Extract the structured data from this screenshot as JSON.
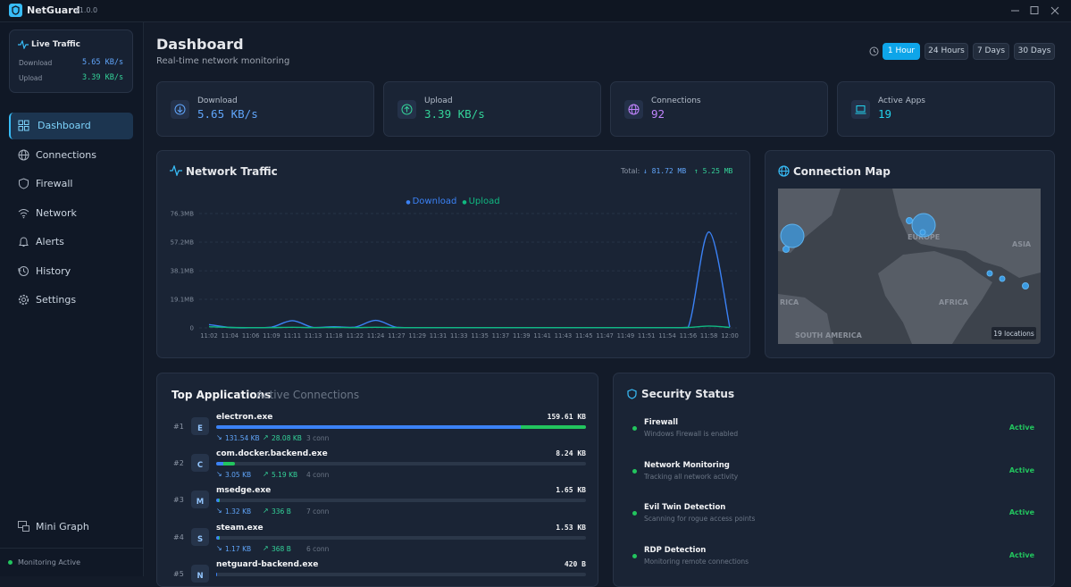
{
  "app": {
    "name": "NetGuard",
    "version": "v1.0.0"
  },
  "live_traffic": {
    "title": "Live Traffic",
    "rows": [
      {
        "label": "Download",
        "value": "5.65 KB/s"
      },
      {
        "label": "Upload",
        "value": "3.39 KB/s"
      }
    ]
  },
  "nav": {
    "items": [
      "Dashboard",
      "Connections",
      "Firewall",
      "Network",
      "Alerts",
      "History",
      "Settings"
    ],
    "active": 0
  },
  "mini_graph": "Mini Graph",
  "status": "Monitoring Active",
  "header": {
    "title": "Dashboard",
    "subtitle": "Real-time network monitoring"
  },
  "time_ranges": {
    "items": [
      "1 Hour",
      "24 Hours",
      "7 Days",
      "30 Days"
    ],
    "active": 0
  },
  "stats": [
    {
      "label": "Download",
      "value": "5.65 KB/s",
      "color": "#60a5fa"
    },
    {
      "label": "Upload",
      "value": "3.39 KB/s",
      "color": "#34d399"
    },
    {
      "label": "Connections",
      "value": "92",
      "color": "#c084fc"
    },
    {
      "label": "Active Apps",
      "value": "19",
      "color": "#22d3ee"
    }
  ],
  "traffic": {
    "title": "Network Traffic",
    "total_label": "Total:",
    "total_down": "↓ 81.72 MB",
    "total_up": "↑ 5.25 MB"
  },
  "chart_data": {
    "type": "line",
    "categories": [
      "11:02",
      "11:04",
      "11:06",
      "11:09",
      "11:11",
      "11:13",
      "11:18",
      "11:22",
      "11:24",
      "11:27",
      "11:29",
      "11:31",
      "11:33",
      "11:35",
      "11:37",
      "11:39",
      "11:41",
      "11:43",
      "11:45",
      "11:47",
      "11:49",
      "11:51",
      "11:54",
      "11:56",
      "11:58",
      "12:00"
    ],
    "series": [
      {
        "name": "Download",
        "color": "#3b82f6",
        "values": [
          2.2,
          0.3,
          0.1,
          0.5,
          4.8,
          0.3,
          0.8,
          0.5,
          5,
          0.4,
          0.2,
          0.2,
          0.2,
          0.2,
          0.2,
          0.2,
          0.2,
          0.2,
          0.2,
          0.2,
          0.2,
          0.2,
          0.2,
          0.3,
          64,
          0.5
        ]
      },
      {
        "name": "Upload",
        "color": "#10b981",
        "values": [
          0.8,
          0.3,
          0.2,
          0.2,
          0.4,
          0.2,
          0.3,
          0.2,
          0.4,
          0.2,
          0.2,
          0.2,
          0.2,
          0.2,
          0.2,
          0.2,
          0.2,
          0.2,
          0.2,
          0.2,
          0.2,
          0.2,
          0.2,
          0.3,
          1.2,
          0.3
        ]
      }
    ],
    "ylim": [
      0,
      76.3
    ],
    "yticks": [
      0,
      {
        "value": 19.1,
        "label": "19.1MB"
      },
      {
        "value": 38.1,
        "label": "38.1MB"
      },
      {
        "value": 57.2,
        "label": "57.2MB"
      },
      {
        "value": 76.3,
        "label": "76.3MB"
      }
    ],
    "grid": true
  },
  "map": {
    "title": "Connection Map",
    "labels": [
      "EUROPE",
      "ASIA",
      "AFRICA",
      "SOUTH AMERICA",
      "RICA"
    ],
    "badge": "19 locations"
  },
  "apps": {
    "tabs": [
      "Top Applications",
      "Active Connections"
    ],
    "active_tab": 0,
    "rows": [
      {
        "rank": "#1",
        "initial": "E",
        "name": "electron.exe",
        "total": "159.61 KB",
        "down": "131.54 KB",
        "up": "28.08 KB",
        "conn": "3 conn"
      },
      {
        "rank": "#2",
        "initial": "C",
        "name": "com.docker.backend.exe",
        "total": "8.24 KB",
        "down": "3.05 KB",
        "up": "5.19 KB",
        "conn": "4 conn"
      },
      {
        "rank": "#3",
        "initial": "M",
        "name": "msedge.exe",
        "total": "1.65 KB",
        "down": "1.32 KB",
        "up": "336 B",
        "conn": "7 conn"
      },
      {
        "rank": "#4",
        "initial": "S",
        "name": "steam.exe",
        "total": "1.53 KB",
        "down": "1.17 KB",
        "up": "368 B",
        "conn": "6 conn"
      },
      {
        "rank": "#5",
        "initial": "N",
        "name": "netguard-backend.exe",
        "total": "420 B"
      }
    ]
  },
  "security": {
    "title": "Security Status",
    "items": [
      {
        "title": "Firewall",
        "desc": "Windows Firewall is enabled",
        "status": "Active"
      },
      {
        "title": "Network Monitoring",
        "desc": "Tracking all network activity",
        "status": "Active"
      },
      {
        "title": "Evil Twin Detection",
        "desc": "Scanning for rogue access points",
        "status": "Active"
      },
      {
        "title": "RDP Detection",
        "desc": "Monitoring remote connections",
        "status": "Active"
      }
    ]
  }
}
